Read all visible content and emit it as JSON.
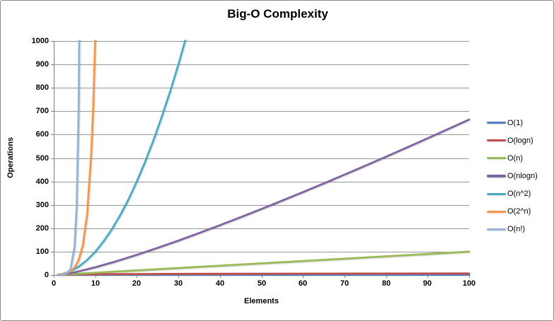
{
  "chart_data": {
    "type": "line",
    "title": "Big-O Complexity",
    "xlabel": "Elements",
    "ylabel": "Operations",
    "xlim": [
      0,
      100
    ],
    "ylim": [
      0,
      1000
    ],
    "x_ticks": [
      0,
      10,
      20,
      30,
      40,
      50,
      60,
      70,
      80,
      90,
      100
    ],
    "y_ticks": [
      0,
      100,
      200,
      300,
      400,
      500,
      600,
      700,
      800,
      900,
      1000
    ],
    "grid": "horizontal",
    "legend_position": "right",
    "colors": {
      "gridline": "#969696",
      "axis": "#7f7f7f",
      "text": "#000000"
    },
    "series": [
      {
        "name": "O(1)",
        "color": "#4F81BD",
        "points": [
          [
            1,
            1
          ],
          [
            100,
            1
          ]
        ]
      },
      {
        "name": "O(logn)",
        "color": "#C0504D",
        "points": [
          [
            1,
            0
          ],
          [
            2,
            1
          ],
          [
            3,
            1.58
          ],
          [
            4,
            2
          ],
          [
            6,
            2.58
          ],
          [
            8,
            3
          ],
          [
            12,
            3.58
          ],
          [
            16,
            4
          ],
          [
            24,
            4.58
          ],
          [
            32,
            5
          ],
          [
            48,
            5.58
          ],
          [
            64,
            6
          ],
          [
            80,
            6.32
          ],
          [
            100,
            6.64
          ]
        ]
      },
      {
        "name": "O(n)",
        "color": "#9BBB59",
        "points": [
          [
            1,
            1
          ],
          [
            100,
            100
          ]
        ]
      },
      {
        "name": "O(nlogn)",
        "color": "#8064A2",
        "points": [
          [
            1,
            0
          ],
          [
            2,
            2
          ],
          [
            3,
            4.75
          ],
          [
            4,
            8
          ],
          [
            5,
            11.6
          ],
          [
            10,
            33.2
          ],
          [
            15,
            58.6
          ],
          [
            20,
            86.4
          ],
          [
            25,
            116.1
          ],
          [
            30,
            147.2
          ],
          [
            35,
            179.5
          ],
          [
            40,
            212.9
          ],
          [
            45,
            247.1
          ],
          [
            50,
            282.2
          ],
          [
            55,
            318.1
          ],
          [
            60,
            354.4
          ],
          [
            65,
            391.5
          ],
          [
            70,
            429
          ],
          [
            75,
            467.2
          ],
          [
            80,
            505.8
          ],
          [
            85,
            544.8
          ],
          [
            90,
            584.3
          ],
          [
            95,
            624.1
          ],
          [
            100,
            664.4
          ]
        ]
      },
      {
        "name": "O(n^2)",
        "color": "#4BACC6",
        "points": [
          [
            1,
            1
          ],
          [
            2,
            4
          ],
          [
            4,
            16
          ],
          [
            6,
            36
          ],
          [
            8,
            64
          ],
          [
            10,
            100
          ],
          [
            12,
            144
          ],
          [
            14,
            196
          ],
          [
            16,
            256
          ],
          [
            18,
            324
          ],
          [
            20,
            400
          ],
          [
            22,
            484
          ],
          [
            24,
            576
          ],
          [
            26,
            676
          ],
          [
            28,
            784
          ],
          [
            30,
            900
          ],
          [
            32,
            1024
          ]
        ]
      },
      {
        "name": "O(2^n)",
        "color": "#F79646",
        "points": [
          [
            1,
            2
          ],
          [
            2,
            4
          ],
          [
            3,
            8
          ],
          [
            4,
            16
          ],
          [
            5,
            32
          ],
          [
            6,
            64
          ],
          [
            7,
            128
          ],
          [
            8,
            256
          ],
          [
            9,
            512
          ],
          [
            9.5,
            724
          ],
          [
            10,
            1024
          ]
        ]
      },
      {
        "name": "O(n!)",
        "color": "#95B3D7",
        "points": [
          [
            1,
            1
          ],
          [
            2,
            2
          ],
          [
            3,
            6
          ],
          [
            4,
            24
          ],
          [
            5,
            120
          ],
          [
            5.5,
            288
          ],
          [
            6,
            720
          ],
          [
            6.5,
            1871
          ],
          [
            7,
            5040
          ]
        ]
      }
    ]
  }
}
